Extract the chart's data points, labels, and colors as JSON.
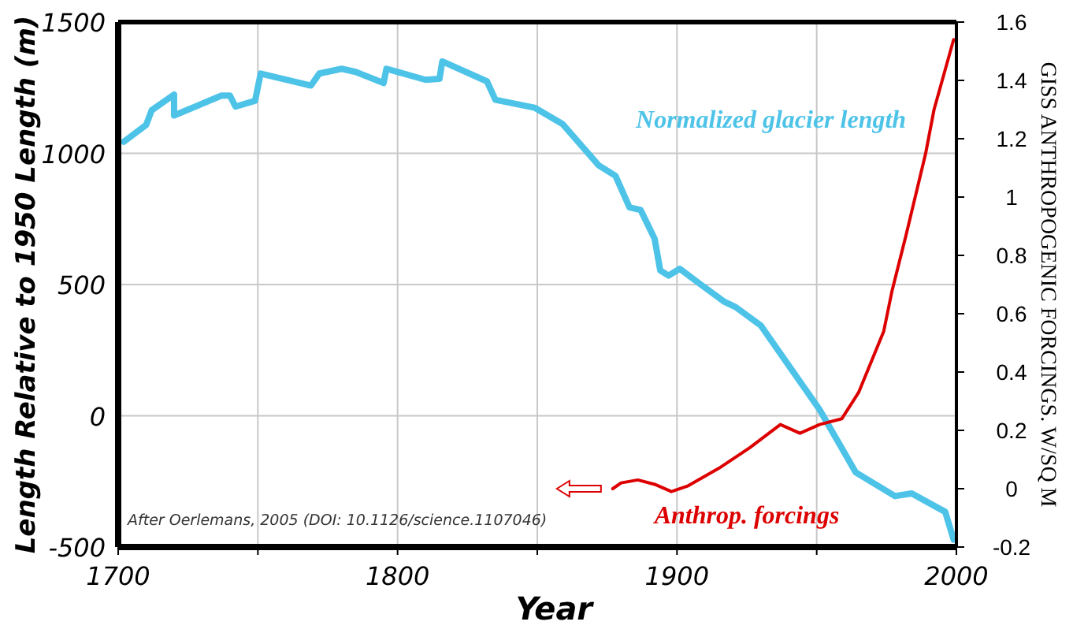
{
  "chart_data": {
    "type": "line",
    "xlabel": "Year",
    "ylabel": "Length Relative to 1950 Length (m)",
    "y2label": "GISS ANTHROPOGENIC FORCINGS. W/SQ M",
    "xlim": [
      1700,
      2000
    ],
    "xticks": [
      1700,
      {
        "value": 1750,
        "label": null
      },
      1800,
      {
        "value": 1850,
        "label": null
      },
      1900,
      {
        "value": 1950,
        "label": null
      },
      2000
    ],
    "ylim": [
      -500,
      1500
    ],
    "yticks": [
      -500,
      0,
      500,
      1000,
      1500
    ],
    "y2lim": [
      -0.2,
      1.6
    ],
    "y2ticks": [
      -0.2,
      0,
      0.2,
      0.4,
      0.6,
      0.8,
      1,
      1.2,
      1.4,
      1.6
    ],
    "grid": true,
    "series": [
      {
        "name": "Normalized glacier length",
        "color": "#4ec3e8",
        "x": [
          1702,
          1710,
          1712,
          1720,
          1720,
          1737,
          1740,
          1742,
          1749,
          1751,
          1769,
          1772,
          1780,
          1785,
          1795,
          1796,
          1810,
          1815,
          1816,
          1832,
          1835,
          1849,
          1859,
          1872,
          1878,
          1883,
          1887,
          1892,
          1894,
          1897,
          1901,
          1908,
          1917,
          1921,
          1930,
          1951,
          1964,
          1978,
          1984,
          1996,
          1999
        ],
        "values": [
          1044,
          1108,
          1164,
          1224,
          1144,
          1220,
          1220,
          1178,
          1200,
          1304,
          1258,
          1304,
          1322,
          1310,
          1268,
          1322,
          1280,
          1284,
          1350,
          1274,
          1204,
          1174,
          1112,
          954,
          914,
          794,
          784,
          674,
          554,
          534,
          560,
          504,
          434,
          414,
          344,
          24,
          -216,
          -306,
          -296,
          -366,
          -472
        ]
      },
      {
        "name": "Anthrop. forcings",
        "color": "#dd0000",
        "axis": "y2",
        "x": [
          1877,
          1880,
          1886,
          1892,
          1898,
          1904,
          1915,
          1926,
          1937,
          1944,
          1951,
          1959,
          1965,
          1974,
          1977,
          1982,
          1989,
          1992,
          1999
        ],
        "values": [
          0,
          0.02,
          0.03,
          0.015,
          -0.01,
          0.01,
          0.07,
          0.14,
          0.22,
          0.19,
          0.22,
          0.24,
          0.33,
          0.54,
          0.68,
          0.87,
          1.15,
          1.3,
          1.54
        ]
      }
    ],
    "annotations": [
      "After Oerlemans, 2005 (DOI: 10.1126/science.1107046)"
    ]
  }
}
